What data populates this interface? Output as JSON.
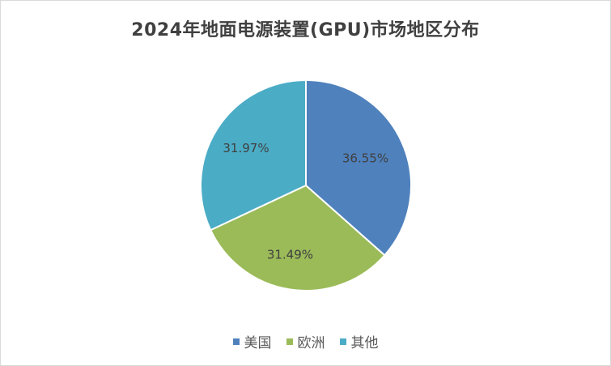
{
  "chart_data": {
    "type": "pie",
    "title": "2024年地面电源装置(GPU)市场地区分布",
    "categories": [
      "美国",
      "欧洲",
      "其他"
    ],
    "values": [
      36.55,
      31.49,
      31.97
    ],
    "labels": [
      "36.55%",
      "31.49%",
      "31.97%"
    ],
    "colors": [
      "#4f81bd",
      "#9bbb59",
      "#4bacc6"
    ],
    "legend_position": "bottom"
  }
}
